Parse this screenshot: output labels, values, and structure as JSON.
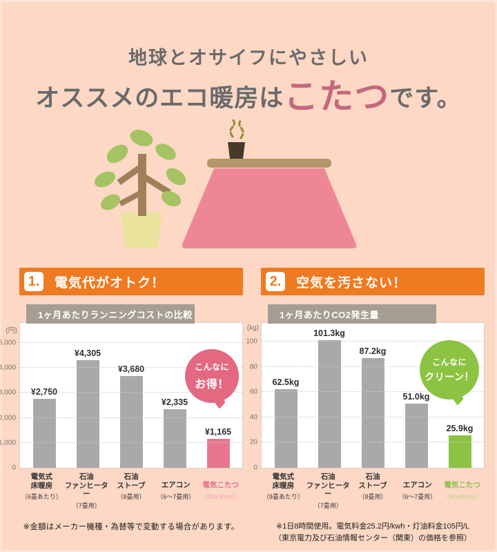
{
  "page": {
    "title_line1": "地球とオサイフにやさしい",
    "title_line2_prefix": "オススメのエコ暖房は",
    "title_line2_highlight": "こたつ",
    "title_line2_suffix": "です。",
    "highlight_color": "#c4687c",
    "background_color": "#fcd8c5",
    "accent_orange": "#ee7a22"
  },
  "sections": [
    {
      "number": "1.",
      "heading": "電気代がオトク！",
      "badge_line1": "こんなに",
      "badge_line2": "お得！",
      "badge_color": "#e36880",
      "note": "※金額はメーカー機種・為替等で変動する場合があります。"
    },
    {
      "number": "2.",
      "heading": "空気を汚さない！",
      "badge_line1": "こんなに",
      "badge_line2": "クリーン！",
      "badge_color": "#8cc342",
      "note_line1": "※1日8時間使用。電気料金25.2円/kwh・灯油料金105円/L",
      "note_line2": "（東京電力及び石油情報センター（関東）の価格を参照）"
    }
  ],
  "chart_data": [
    {
      "type": "bar",
      "title": "1ヶ月あたりランニングコストの比較",
      "unit_display": "(円)",
      "ylabel": "円",
      "ylim": [
        0,
        5800
      ],
      "grid": true,
      "yticks": [
        0,
        1000,
        2000,
        3000,
        4000,
        5000
      ],
      "ytick_labels": [
        "0",
        "1,000",
        "2,000",
        "3,000",
        "4,000",
        "5,000"
      ],
      "categories": [
        "電気式\n床暖房",
        "石油\nファンヒーター",
        "石油\nストーブ",
        "エアコン",
        "電気こたつ"
      ],
      "category_notes": [
        "（6畳あたり）",
        "（7畳用）",
        "（8畳用）",
        "（6〜7畳用）",
        "（90×90cm）"
      ],
      "values": [
        2750,
        4305,
        3680,
        2335,
        1165
      ],
      "value_labels": [
        "¥2,750",
        "¥4,305",
        "¥3,680",
        "¥2,335",
        "¥1,165"
      ],
      "bar_colors": [
        "#a9a9a9",
        "#a9a9a9",
        "#a9a9a9",
        "#a9a9a9",
        "#e8778e"
      ],
      "label_colors": [
        "#333333",
        "#333333",
        "#333333",
        "#333333",
        "#e0718b"
      ],
      "paren_colors": [
        "#3a3a3a",
        "#3a3a3a",
        "#3a3a3a",
        "#3a3a3a",
        "#efa0ae"
      ],
      "annotation": "こんなにお得！"
    },
    {
      "type": "bar",
      "title": "1ヶ月あたりCO2発生量",
      "unit_display": "(kg)",
      "ylabel": "kg",
      "ylim": [
        0,
        115
      ],
      "grid": true,
      "yticks": [
        0,
        20,
        40,
        60,
        80,
        100
      ],
      "ytick_labels": [
        "0",
        "20",
        "40",
        "60",
        "80",
        "100"
      ],
      "categories": [
        "電気式\n床暖房",
        "石油\nファンヒーター",
        "石油\nストーブ",
        "エアコン",
        "電気こたつ"
      ],
      "category_notes": [
        "（8畳あたり）",
        "（7畳用）",
        "（8畳用）",
        "（6〜7畳用）",
        "（90×90cm）"
      ],
      "values": [
        62.5,
        101.3,
        87.2,
        51.0,
        25.9
      ],
      "value_labels": [
        "62.5kg",
        "101.3kg",
        "87.2kg",
        "51.0kg",
        "25.9kg"
      ],
      "bar_colors": [
        "#a9a9a9",
        "#a9a9a9",
        "#a9a9a9",
        "#a9a9a9",
        "#8cc342"
      ],
      "label_colors": [
        "#333333",
        "#333333",
        "#333333",
        "#333333",
        "#8bbf45"
      ],
      "paren_colors": [
        "#3a3a3a",
        "#3a3a3a",
        "#3a3a3a",
        "#3a3a3a",
        "#b5d37f"
      ],
      "annotation": "こんなにクリーン！"
    }
  ]
}
